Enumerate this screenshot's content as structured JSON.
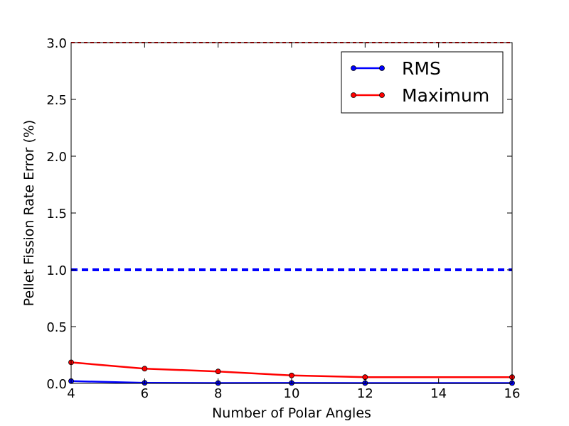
{
  "chart_data": {
    "type": "line",
    "title": "",
    "xlabel": "Number of Polar Angles",
    "ylabel": "Pellet Fission Rate Error (%)",
    "xlim": [
      4,
      16
    ],
    "ylim": [
      0.0,
      3.0
    ],
    "x_ticks": [
      "4",
      "6",
      "8",
      "10",
      "12",
      "14",
      "16"
    ],
    "y_ticks": [
      "0.0",
      "0.5",
      "1.0",
      "1.5",
      "2.0",
      "2.5",
      "3.0"
    ],
    "x": [
      4,
      6,
      8,
      10,
      12,
      16
    ],
    "series": [
      {
        "name": "RMS",
        "color": "#0000ff",
        "values": [
          0.02,
          0.005,
          0.003,
          0.004,
          0.003,
          0.003
        ]
      },
      {
        "name": "Maximum",
        "color": "#ff0000",
        "values": [
          0.185,
          0.13,
          0.105,
          0.07,
          0.055,
          0.055
        ]
      }
    ],
    "reference_lines": [
      {
        "y": 1.0,
        "color": "#0000ff",
        "style": "dashed"
      },
      {
        "y": 3.0,
        "color": "#ff0000",
        "style": "dashed"
      }
    ],
    "legend_position": "top-right",
    "grid": false
  }
}
